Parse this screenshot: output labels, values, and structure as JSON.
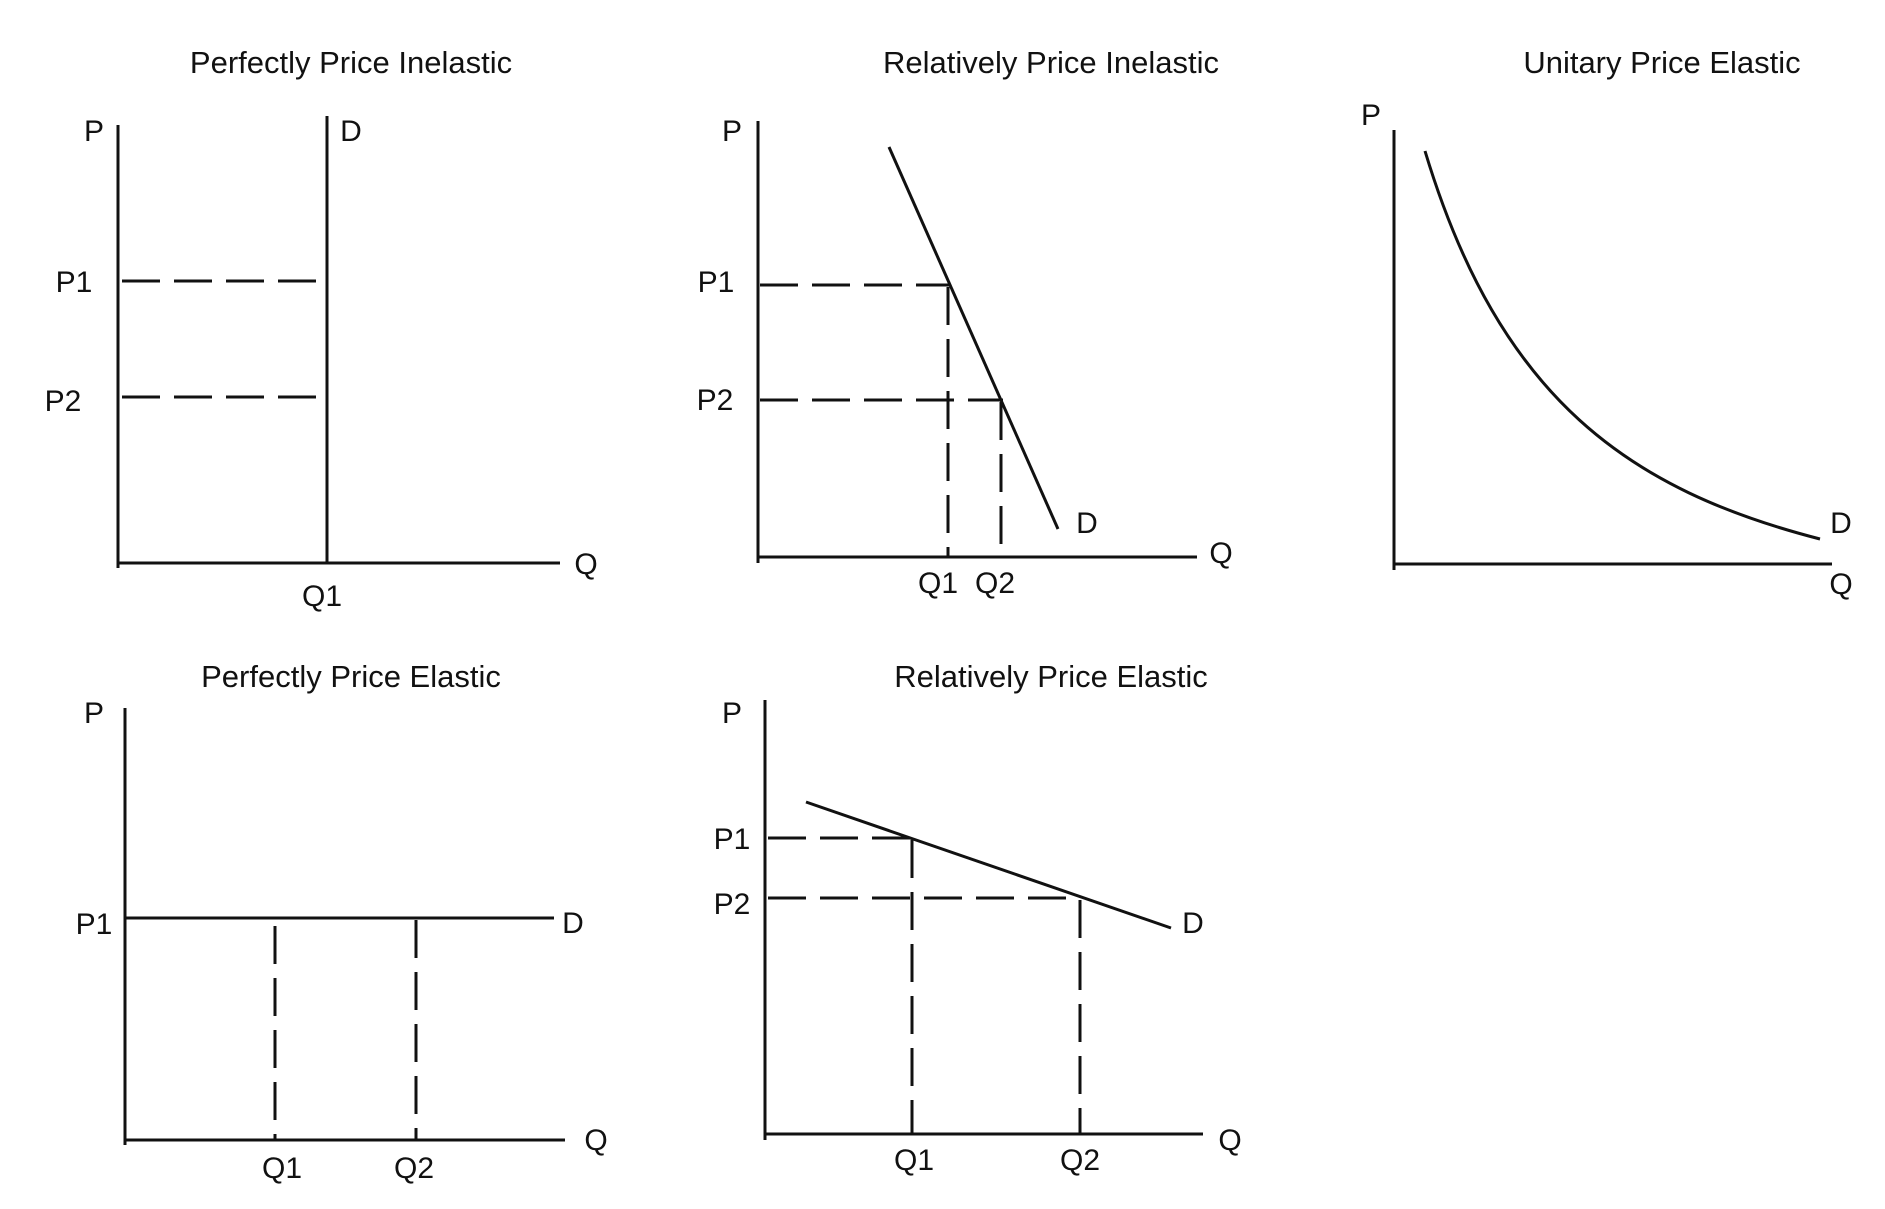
{
  "panels": {
    "perfectly_inelastic": {
      "title": "Perfectly Price Inelastic",
      "y_axis": "P",
      "x_axis": "Q",
      "curve": "D",
      "p1": "P1",
      "p2": "P2",
      "q1": "Q1"
    },
    "relatively_inelastic": {
      "title": "Relatively Price Inelastic",
      "y_axis": "P",
      "x_axis": "Q",
      "curve": "D",
      "p1": "P1",
      "p2": "P2",
      "q1": "Q1",
      "q2": "Q2"
    },
    "unitary_elastic": {
      "title": "Unitary Price Elastic",
      "y_axis": "P",
      "x_axis": "Q",
      "curve": "D"
    },
    "perfectly_elastic": {
      "title": "Perfectly Price Elastic",
      "y_axis": "P",
      "x_axis": "Q",
      "curve": "D",
      "p1": "P1",
      "q1": "Q1",
      "q2": "Q2"
    },
    "relatively_elastic": {
      "title": "Relatively Price Elastic",
      "y_axis": "P",
      "x_axis": "Q",
      "curve": "D",
      "p1": "P1",
      "p2": "P2",
      "q1": "Q1",
      "q2": "Q2"
    }
  }
}
